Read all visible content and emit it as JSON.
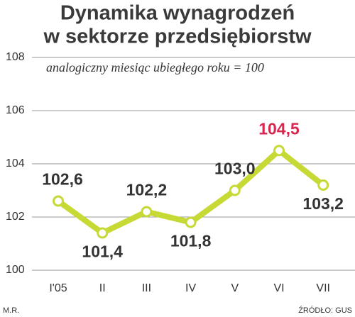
{
  "chart_data": {
    "type": "line",
    "title": [
      "Dynamika wynagrodzeń",
      "w sektorze przedsiębiorstw"
    ],
    "subtitle": "analogiczny miesiąc ubiegłego roku = 100",
    "categories": [
      "I'05",
      "II",
      "III",
      "IV",
      "V",
      "VI",
      "VII"
    ],
    "values": [
      102.6,
      101.4,
      102.2,
      101.8,
      103.0,
      104.5,
      103.2
    ],
    "value_labels": [
      "102,6",
      "101,4",
      "102,2",
      "101,8",
      "103,0",
      "104,5",
      "103,2"
    ],
    "value_label_colors": [
      "#333333",
      "#333333",
      "#333333",
      "#333333",
      "#333333",
      "#d8264f",
      "#333333"
    ],
    "color": "#c6d934",
    "ylim": [
      100,
      108
    ],
    "yticks": [
      100,
      102,
      104,
      106,
      108
    ],
    "grid": true,
    "author": "M.R.",
    "source": "ŹRÓDŁO: GUS"
  }
}
